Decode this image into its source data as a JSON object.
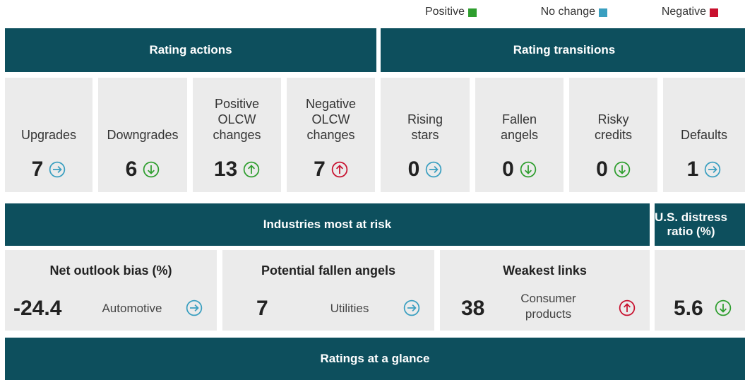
{
  "legend": [
    {
      "label": "Positive",
      "color": "#2e9e2e"
    },
    {
      "label": "No change",
      "color": "#3a9fc0"
    },
    {
      "label": "Negative",
      "color": "#c8102e"
    }
  ],
  "sections": {
    "rating_actions": "Rating actions",
    "rating_transitions": "Rating transitions",
    "industries": "Industries most at risk",
    "distress": "U.S. distress\nratio (%)",
    "glance": "Ratings at a glance"
  },
  "tiles": [
    {
      "label": "Upgrades",
      "value": 7,
      "icon": "right",
      "color": "#3a9fc0"
    },
    {
      "label": "Downgrades",
      "value": 6,
      "icon": "down",
      "color": "#2e9e2e"
    },
    {
      "label": "Positive\nOLCW\nchanges",
      "value": 13,
      "icon": "up",
      "color": "#2e9e2e"
    },
    {
      "label": "Negative\nOLCW\nchanges",
      "value": 7,
      "icon": "up",
      "color": "#c8102e"
    },
    {
      "label": "Rising\nstars",
      "value": 0,
      "icon": "right",
      "color": "#3a9fc0"
    },
    {
      "label": "Fallen\nangels",
      "value": 0,
      "icon": "down",
      "color": "#2e9e2e"
    },
    {
      "label": "Risky\ncredits",
      "value": 0,
      "icon": "down",
      "color": "#2e9e2e"
    },
    {
      "label": "Defaults",
      "value": 1,
      "icon": "right",
      "color": "#3a9fc0"
    }
  ],
  "risk": [
    {
      "label": "Net outlook bias (%)",
      "value": -24.4,
      "industry": "Automotive",
      "icon": "right",
      "color": "#3a9fc0"
    },
    {
      "label": "Potential fallen angels",
      "value": 7,
      "industry": "Utilities",
      "icon": "right",
      "color": "#3a9fc0"
    },
    {
      "label": "Weakest links",
      "value": 38,
      "industry": "Consumer\nproducts",
      "icon": "up",
      "color": "#c8102e"
    }
  ],
  "distress": {
    "value": 5.6,
    "icon": "down",
    "color": "#2e9e2e"
  }
}
